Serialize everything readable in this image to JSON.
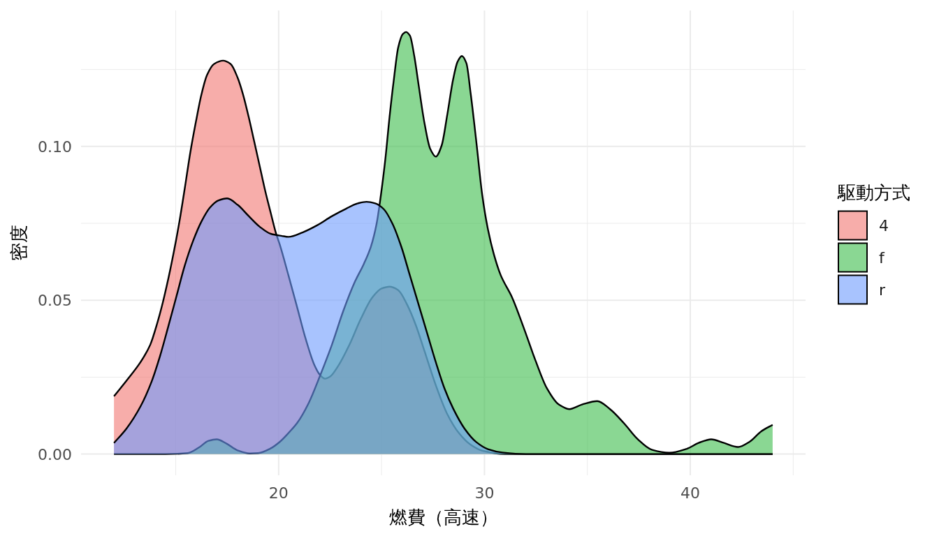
{
  "chart_data": {
    "type": "area",
    "xlabel": "燃費（高速）",
    "ylabel": "密度",
    "legend_title": "駆動方式",
    "legend": "right",
    "grid": true,
    "xlim": [
      10.4,
      45.6
    ],
    "ylim": [
      -0.0069,
      0.1442
    ],
    "xticks": [
      {
        "value": 15,
        "label": null
      },
      20,
      {
        "value": 25,
        "label": null
      },
      30,
      {
        "value": 35,
        "label": null
      },
      40,
      {
        "value": 45,
        "label": null
      }
    ],
    "yticks": [
      {
        "value": 0,
        "label": "0.00"
      },
      {
        "value": 0.025,
        "label": null
      },
      {
        "value": 0.05,
        "label": "0.05"
      },
      {
        "value": 0.075,
        "label": null
      },
      {
        "value": 0.1,
        "label": "0.10"
      },
      {
        "value": 0.125,
        "label": null
      }
    ],
    "series": [
      {
        "name": "4",
        "color": "#f7adaa",
        "x": [
          12.0,
          12.6,
          13.3,
          13.76,
          14.1,
          14.37,
          14.64,
          14.91,
          15.18,
          15.44,
          15.71,
          15.98,
          16.25,
          16.52,
          16.86,
          17.3,
          17.67,
          18.01,
          18.27,
          18.54,
          18.81,
          19.08,
          19.35,
          19.62,
          19.87,
          20.06,
          20.48,
          20.9,
          21.32,
          21.74,
          22.0,
          22.25,
          22.5,
          22.87,
          23.43,
          23.99,
          24.55,
          25.0,
          25.39,
          25.81,
          26.24,
          26.66,
          27.08,
          27.64,
          28.2,
          28.76,
          29.33,
          29.89,
          31.0,
          44.0
        ],
        "values": [
          0.0188,
          0.0238,
          0.03,
          0.0355,
          0.0425,
          0.0492,
          0.057,
          0.0658,
          0.0756,
          0.0864,
          0.0981,
          0.108,
          0.1169,
          0.1232,
          0.1268,
          0.1279,
          0.1268,
          0.1223,
          0.1169,
          0.1097,
          0.1017,
          0.0936,
          0.0855,
          0.0783,
          0.0718,
          0.068,
          0.058,
          0.0477,
          0.0373,
          0.0289,
          0.0258,
          0.0245,
          0.0252,
          0.0284,
          0.0354,
          0.0439,
          0.0509,
          0.0538,
          0.0544,
          0.0533,
          0.0486,
          0.042,
          0.0336,
          0.0223,
          0.0129,
          0.0068,
          0.003,
          0.0011,
          0,
          0
        ]
      },
      {
        "name": "f",
        "color": "#8ad793",
        "x": [
          12.0,
          14.5,
          15.58,
          16.12,
          16.59,
          16.99,
          17.47,
          18.01,
          18.6,
          19.0,
          19.6,
          20.06,
          20.5,
          20.9,
          21.46,
          22.02,
          22.58,
          23.15,
          23.71,
          24.13,
          24.48,
          24.76,
          24.97,
          25.18,
          25.39,
          25.6,
          25.81,
          26.03,
          26.19,
          26.38,
          26.59,
          26.8,
          27.08,
          27.36,
          27.64,
          27.92,
          28.2,
          28.48,
          28.69,
          28.9,
          29.12,
          29.33,
          29.61,
          29.89,
          30.17,
          30.45,
          30.78,
          31.35,
          31.91,
          32.48,
          33.04,
          33.61,
          34.12,
          34.74,
          35.48,
          36.1,
          36.78,
          37.45,
          38.13,
          38.98,
          39.83,
          40.4,
          41.02,
          41.64,
          42.32,
          42.88,
          43.45,
          44.0
        ],
        "values": [
          0,
          0,
          0.0003,
          0.0021,
          0.0043,
          0.0048,
          0.0034,
          0.0012,
          0.0002,
          0.0003,
          0.0018,
          0.004,
          0.007,
          0.0101,
          0.0166,
          0.0256,
          0.0354,
          0.0467,
          0.0561,
          0.0617,
          0.0674,
          0.0749,
          0.0843,
          0.0956,
          0.1097,
          0.1219,
          0.1322,
          0.1365,
          0.1372,
          0.136,
          0.1294,
          0.12,
          0.1078,
          0.0993,
          0.0967,
          0.1003,
          0.1106,
          0.1219,
          0.1275,
          0.1294,
          0.1271,
          0.1172,
          0.1012,
          0.0843,
          0.073,
          0.0651,
          0.0583,
          0.0508,
          0.041,
          0.0304,
          0.0213,
          0.0161,
          0.0146,
          0.0161,
          0.0172,
          0.0146,
          0.01,
          0.0048,
          0.0014,
          0.0004,
          0.0017,
          0.0036,
          0.0048,
          0.0036,
          0.0023,
          0.004,
          0.0074,
          0.0095
        ]
      },
      {
        "name": "r",
        "color": "#a8c3fe",
        "x": [
          12.0,
          12.61,
          13.29,
          13.83,
          14.23,
          14.64,
          15.04,
          15.44,
          15.85,
          16.25,
          16.66,
          17.06,
          17.5,
          18.01,
          18.54,
          19.08,
          19.62,
          20.16,
          20.48,
          21.18,
          21.88,
          22.58,
          23.29,
          23.85,
          24.27,
          24.69,
          25.11,
          25.53,
          25.96,
          26.38,
          26.8,
          27.22,
          27.64,
          28.06,
          28.48,
          29.04,
          29.6,
          30.17,
          30.88,
          32.0,
          44.0
        ],
        "values": [
          0.0036,
          0.0083,
          0.0155,
          0.0236,
          0.0317,
          0.0415,
          0.0514,
          0.0613,
          0.0694,
          0.0756,
          0.0801,
          0.0824,
          0.0831,
          0.081,
          0.0774,
          0.0739,
          0.0716,
          0.0709,
          0.0706,
          0.0721,
          0.0744,
          0.0773,
          0.0798,
          0.0815,
          0.082,
          0.0815,
          0.0796,
          0.0749,
          0.0674,
          0.058,
          0.0486,
          0.0392,
          0.0298,
          0.0213,
          0.0148,
          0.0082,
          0.0039,
          0.0016,
          0.0005,
          0,
          0
        ]
      }
    ]
  }
}
